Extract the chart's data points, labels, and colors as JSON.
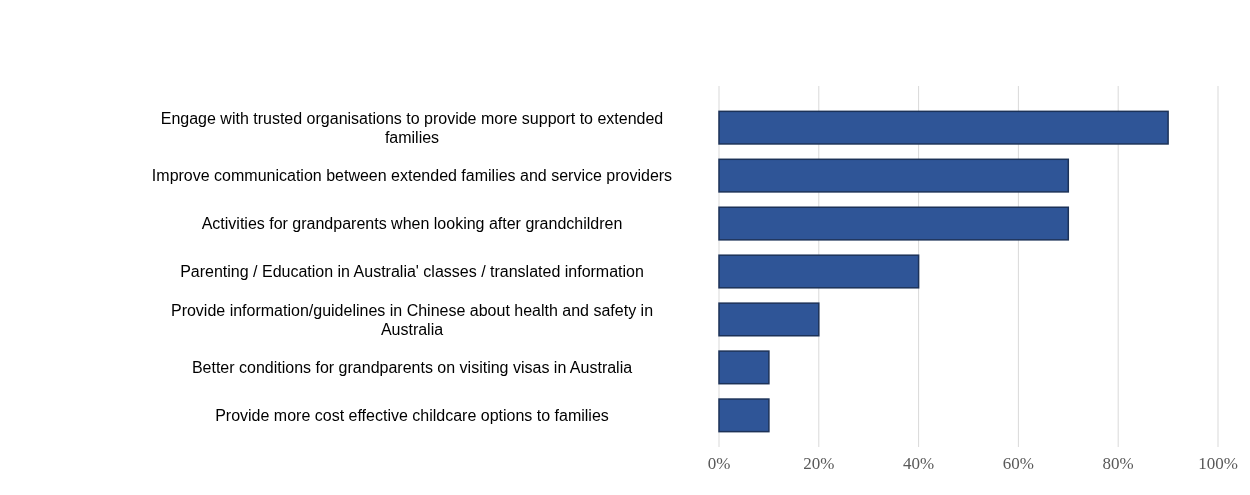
{
  "chart_data": {
    "type": "bar",
    "orientation": "horizontal",
    "categories": [
      "Engage with trusted organisations to provide more support to extended families",
      "Improve communication between extended families and service providers",
      "Activities for grandparents when looking after grandchildren",
      "Parenting / Education in Australia' classes / translated information",
      "Provide information/guidelines in Chinese about health and safety in Australia",
      "Better conditions for grandparents on visiting visas in Australia",
      "Provide more cost effective childcare options to families"
    ],
    "values": [
      90,
      70,
      70,
      40,
      20,
      10,
      10
    ],
    "color": "#2f5597",
    "xlim": [
      0,
      100
    ],
    "xticks": [
      {
        "value": 0,
        "label": "0%"
      },
      {
        "value": 20,
        "label": "20%"
      },
      {
        "value": 40,
        "label": "40%"
      },
      {
        "value": 60,
        "label": "60%"
      },
      {
        "value": 80,
        "label": "80%"
      },
      {
        "value": 100,
        "label": "100%"
      }
    ],
    "grid": "x"
  }
}
